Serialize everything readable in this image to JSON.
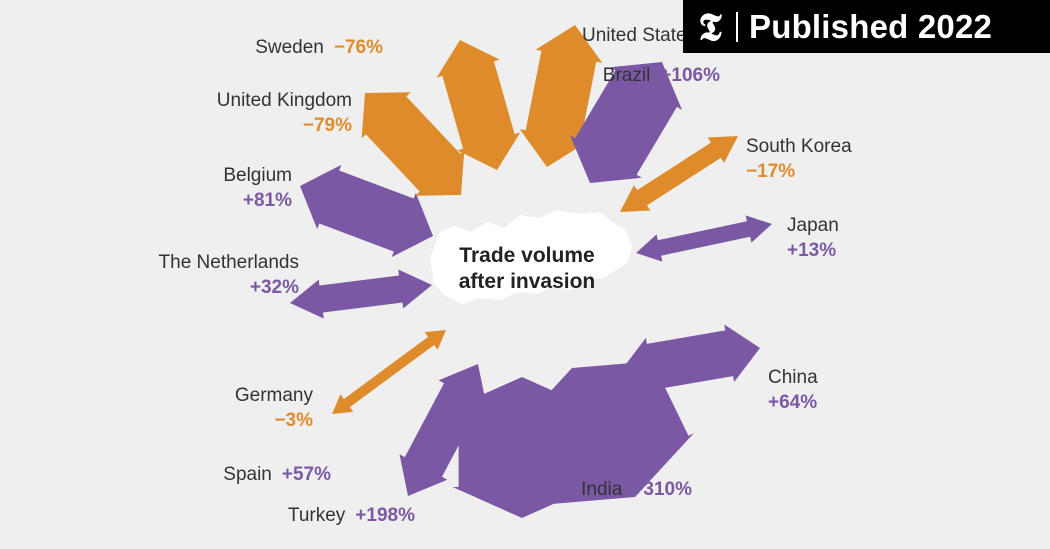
{
  "chart_data": {
    "type": "diagram",
    "center_label": [
      "Trade volume",
      "after invasion"
    ],
    "colors": {
      "increase": "#7b58a4",
      "decrease": "#de8b2c"
    },
    "series": [
      {
        "name": "Sweden",
        "change": "−76%",
        "value": -76
      },
      {
        "name": "United States",
        "change": "",
        "value": null
      },
      {
        "name": "Brazil",
        "change": "+106%",
        "value": 106
      },
      {
        "name": "South Korea",
        "change": "−17%",
        "value": -17
      },
      {
        "name": "Japan",
        "change": "+13%",
        "value": 13
      },
      {
        "name": "China",
        "change": "+64%",
        "value": 64
      },
      {
        "name": "India",
        "change": "+310%",
        "value": 310
      },
      {
        "name": "Turkey",
        "change": "+198%",
        "value": 198
      },
      {
        "name": "Spain",
        "change": "+57%",
        "value": 57
      },
      {
        "name": "Germany",
        "change": "−3%",
        "value": -3
      },
      {
        "name": "The Netherlands",
        "change": "+32%",
        "value": 32
      },
      {
        "name": "Belgium",
        "change": "+81%",
        "value": 81
      },
      {
        "name": "United Kingdom",
        "change": "−79%",
        "value": -79
      }
    ]
  },
  "badge": {
    "logo": "𝕿",
    "label": "Published 2022"
  }
}
